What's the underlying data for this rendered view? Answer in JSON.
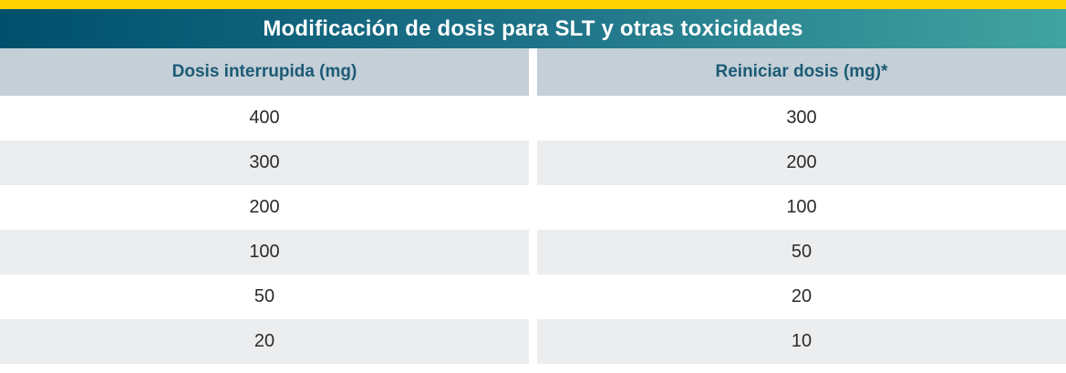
{
  "table": {
    "title": "Modificación de dosis para SLT y otras toxicidades",
    "columns": [
      {
        "label": "Dosis interrupida (mg)"
      },
      {
        "label": "Reiniciar dosis (mg)*"
      }
    ],
    "rows": [
      {
        "interrupida": "400",
        "reiniciar": "300"
      },
      {
        "interrupida": "300",
        "reiniciar": "200"
      },
      {
        "interrupida": "200",
        "reiniciar": "100"
      },
      {
        "interrupida": "100",
        "reiniciar": "50"
      },
      {
        "interrupida": "50",
        "reiniciar": "20"
      },
      {
        "interrupida": "20",
        "reiniciar": "10"
      }
    ]
  },
  "colors": {
    "accent_yellow": "#FFD200",
    "title_gradient_start": "#00506C",
    "title_gradient_mid": "#1F7489",
    "title_gradient_end": "#41A4A0",
    "title_text": "#FFFFFF",
    "column_header_bg": "#C4CFD8",
    "column_header_text": "#1C5B74",
    "row_alt_bg": "#ECEDEF",
    "row_bg": "#FFFFFF",
    "body_text": "#2B2B2B"
  }
}
